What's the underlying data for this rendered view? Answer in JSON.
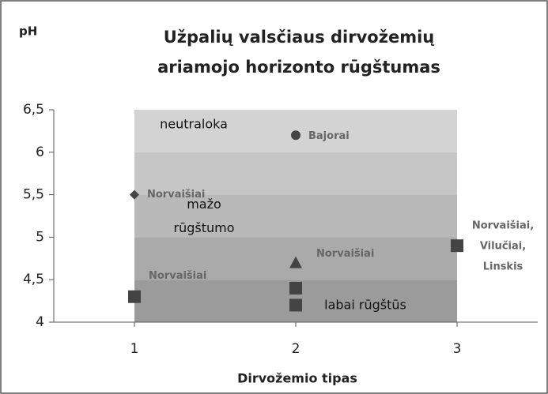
{
  "chart_data": {
    "type": "scatter",
    "title": [
      "Užpalių valsčiaus dirvožemių",
      "ariamojo horizonto rūgštumas"
    ],
    "y_label": "pH",
    "x_label": "Dirvožemio tipas",
    "xlim": [
      0.5,
      3.5
    ],
    "xticks": [
      1,
      2,
      3
    ],
    "ylim": [
      4,
      6.5
    ],
    "yticks": [
      4,
      {
        "value": 4.5,
        "label": "4,5"
      },
      5,
      {
        "value": 5.5,
        "label": "5,5"
      },
      6,
      {
        "value": 6.5,
        "label": "6,5"
      }
    ],
    "band_x": [
      1,
      3
    ],
    "bands": [
      {
        "from": 6,
        "to": 6.5,
        "color": "#d3d3d3",
        "label": [
          "neutraloka"
        ]
      },
      {
        "from": 5.5,
        "to": 6,
        "color": "#c6c6c6"
      },
      {
        "from": 5,
        "to": 5.5,
        "color": "#b9b9b9",
        "label": [
          "mažo",
          "rūgštumo"
        ]
      },
      {
        "from": 4.5,
        "to": 5,
        "color": "#aaaaaa"
      },
      {
        "from": 4,
        "to": 4.5,
        "color": "#9b9b9b",
        "label": [
          "labai rūgštūs"
        ]
      }
    ],
    "points": [
      {
        "x": 1,
        "y": 5.5,
        "shape": "diamond",
        "label": [
          "Norvaišiai"
        ]
      },
      {
        "x": 1,
        "y": 4.3,
        "shape": "square",
        "label": [
          "Norvaišiai"
        ]
      },
      {
        "x": 2,
        "y": 6.2,
        "shape": "circle",
        "label": [
          "Bajorai"
        ]
      },
      {
        "x": 2,
        "y": 4.7,
        "shape": "triangle",
        "label": [
          "Norvaišiai"
        ]
      },
      {
        "x": 2,
        "y": 4.4,
        "shape": "square"
      },
      {
        "x": 2,
        "y": 4.2,
        "shape": "square"
      },
      {
        "x": 3,
        "y": 4.9,
        "shape": "square",
        "label": [
          "Norvaišiai,",
          "Vilučiai,",
          "Linskis"
        ]
      }
    ],
    "color": "#444444"
  }
}
